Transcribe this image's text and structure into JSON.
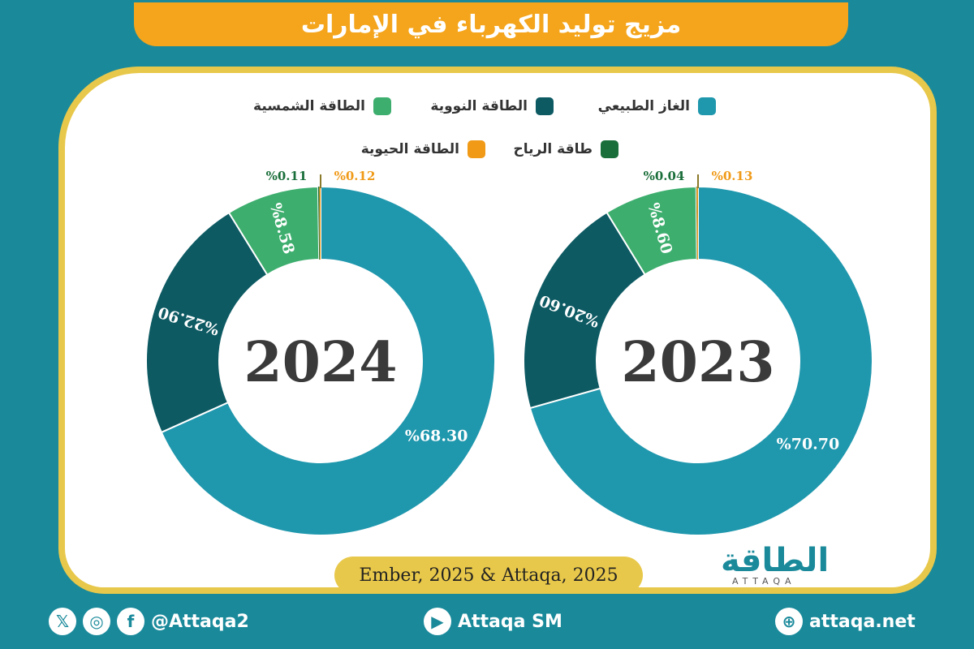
{
  "title": "مزيج توليد الكهرباء في الإمارات",
  "legend": {
    "gas": "الغاز الطبيعي",
    "nuclear": "الطاقة النووية",
    "solar": "الطاقة الشمسية",
    "wind": "طاقة الرياح",
    "bio": "الطاقة الحيوية"
  },
  "colors": {
    "gas": "#1f97ad",
    "nuclear": "#0d5a63",
    "solar": "#3dae6e",
    "wind": "#1a6e3a",
    "bio": "#f09a18"
  },
  "chart_data": [
    {
      "type": "pie",
      "title": "2023",
      "slices": [
        {
          "key": "gas",
          "value": 70.7,
          "label": "%70.70"
        },
        {
          "key": "nuclear",
          "value": 20.6,
          "label": "%20.60"
        },
        {
          "key": "solar",
          "value": 8.6,
          "label": "%8.60"
        },
        {
          "key": "wind",
          "value": 0.04,
          "label": "%0.04"
        },
        {
          "key": "bio",
          "value": 0.13,
          "label": "%0.13"
        }
      ]
    },
    {
      "type": "pie",
      "title": "2024",
      "slices": [
        {
          "key": "gas",
          "value": 68.3,
          "label": "%68.30"
        },
        {
          "key": "nuclear",
          "value": 22.9,
          "label": "%22.90"
        },
        {
          "key": "solar",
          "value": 8.58,
          "label": "%8.58"
        },
        {
          "key": "wind",
          "value": 0.11,
          "label": "%0.11"
        },
        {
          "key": "bio",
          "value": 0.12,
          "label": "%0.12"
        }
      ]
    }
  ],
  "source": "Ember, 2025 & Attaqa, 2025",
  "logo": {
    "text": "الطاقة",
    "sub": "ATTAQA"
  },
  "footer": {
    "social_handle": "@Attaqa2",
    "youtube": "Attaqa SM",
    "website": "attaqa.net"
  }
}
